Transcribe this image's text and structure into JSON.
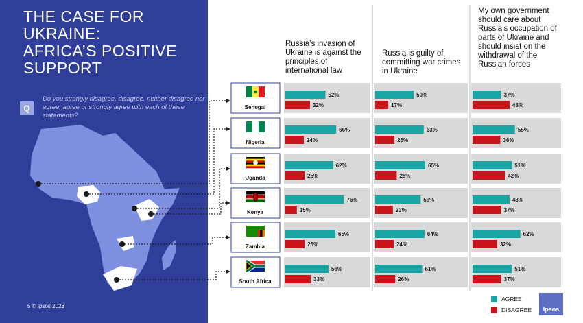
{
  "title_lines": [
    "THE CASE FOR",
    "UKRAINE:",
    "AFRICA’S POSITIVE",
    "SUPPORT"
  ],
  "question_badge": "Q",
  "question": "Do you strongly disagree, disagree, neither disagree nor agree, agree or strongly agree with each of these statements?",
  "footer": "5 © Ipsos 2023",
  "colors": {
    "agree": "#18a5a3",
    "disagree": "#c8141b",
    "panel": "#2f3f99",
    "map": "#7f90e0",
    "row_bg": "#d9d9d9"
  },
  "legend": {
    "agree": "AGREE",
    "disagree": "DISAGREE"
  },
  "logo_text": "Ipsos",
  "chart_data": {
    "type": "bar",
    "orientation": "horizontal",
    "statements": [
      "Russia’s invasion of Ukraine is against the principles of international law",
      "Russia is guilty of committing war crimes in Ukraine",
      "My own government should care about Russia’s occupation of parts of Ukraine and should insist on the withdrawal of the Russian forces"
    ],
    "countries": [
      "Senegal",
      "Nigeria",
      "Uganda",
      "Kenya",
      "Zambia",
      "South Africa"
    ],
    "series": [
      {
        "name": "Agree",
        "values": [
          [
            52,
            50,
            37
          ],
          [
            66,
            63,
            55
          ],
          [
            62,
            65,
            51
          ],
          [
            76,
            59,
            48
          ],
          [
            65,
            64,
            62
          ],
          [
            56,
            61,
            51
          ]
        ]
      },
      {
        "name": "Disagree",
        "values": [
          [
            32,
            17,
            48
          ],
          [
            24,
            25,
            36
          ],
          [
            25,
            28,
            42
          ],
          [
            15,
            23,
            37
          ],
          [
            25,
            24,
            32
          ],
          [
            33,
            26,
            37
          ]
        ]
      }
    ],
    "value_format": "{v}%",
    "xlim": [
      0,
      100
    ]
  }
}
